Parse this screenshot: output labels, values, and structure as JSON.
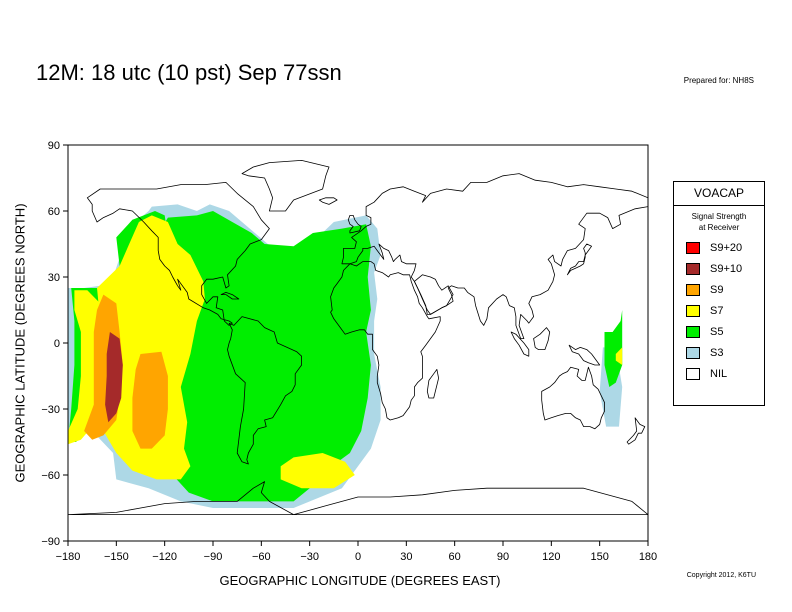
{
  "title": "12M:  18 utc (10 pst) Sep 77ssn",
  "prepared_for": "Prepared for: NH8S",
  "copyright": "Copyright 2012, K6TU",
  "axes": {
    "xlabel": "GEOGRAPHIC LONGITUDE (DEGREES EAST)",
    "ylabel": "GEOGRAPHIC LATITUDE (DEGREES NORTH)",
    "xlim": [
      -180,
      180
    ],
    "ylim": [
      -90,
      90
    ],
    "xticks": [
      "−180",
      "−150",
      "−120",
      "−90",
      "−60",
      "−30",
      "0",
      "30",
      "60",
      "90",
      "120",
      "150",
      "180"
    ],
    "yticks": [
      "90",
      "60",
      "30",
      "0",
      "−30",
      "−60",
      "−90"
    ]
  },
  "legend": {
    "title": "VOACAP",
    "subtitle_line1": "Signal Strength",
    "subtitle_line2": "at Receiver",
    "items": [
      {
        "label": "S9+20",
        "color": "#ff0000"
      },
      {
        "label": "S9+10",
        "color": "#a52a2a"
      },
      {
        "label": "S9",
        "color": "#ffa500"
      },
      {
        "label": "S7",
        "color": "#ffff00"
      },
      {
        "label": "S5",
        "color": "#00ee00"
      },
      {
        "label": "S3",
        "color": "#add8e6"
      },
      {
        "label": "NIL",
        "color": "#ffffff"
      }
    ]
  },
  "chart_data": {
    "type": "map",
    "xlim": [
      -180,
      180
    ],
    "ylim": [
      -90,
      90
    ],
    "regions": [
      {
        "level": "S3",
        "color": "#add8e6",
        "polygon": [
          [
            -128,
            62
          ],
          [
            -112,
            63
          ],
          [
            -100,
            60
          ],
          [
            -92,
            63
          ],
          [
            -80,
            60
          ],
          [
            -72,
            55
          ],
          [
            -64,
            50
          ],
          [
            -56,
            45
          ],
          [
            -40,
            40
          ],
          [
            -25,
            48
          ],
          [
            -15,
            55
          ],
          [
            5,
            58
          ],
          [
            12,
            52
          ],
          [
            14,
            40
          ],
          [
            10,
            32
          ],
          [
            12,
            20
          ],
          [
            10,
            10
          ],
          [
            10,
            -5
          ],
          [
            14,
            -20
          ],
          [
            14,
            -35
          ],
          [
            8,
            -48
          ],
          [
            -2,
            -58
          ],
          [
            -10,
            -66
          ],
          [
            -40,
            -75
          ],
          [
            -90,
            -75
          ],
          [
            -110,
            -72
          ],
          [
            -130,
            -66
          ],
          [
            -150,
            -62
          ],
          [
            -152,
            -50
          ],
          [
            -165,
            -40
          ],
          [
            -178,
            -22
          ],
          [
            -177,
            -10
          ],
          [
            -178,
            5
          ],
          [
            -180,
            25
          ],
          [
            -170,
            25
          ],
          [
            -160,
            26
          ],
          [
            -152,
            30
          ],
          [
            -145,
            45
          ],
          [
            -138,
            55
          ],
          [
            -130,
            60
          ]
        ]
      },
      {
        "level": "S3",
        "color": "#add8e6",
        "polygon": [
          [
            -180,
            25
          ],
          [
            -170,
            25
          ],
          [
            -165,
            18
          ],
          [
            -168,
            0
          ],
          [
            -172,
            -20
          ],
          [
            -172,
            -40
          ],
          [
            -180,
            -42
          ]
        ]
      },
      {
        "level": "S5",
        "color": "#00ee00",
        "polygon": [
          [
            -118,
            57
          ],
          [
            -100,
            58
          ],
          [
            -90,
            60
          ],
          [
            -78,
            55
          ],
          [
            -66,
            50
          ],
          [
            -58,
            45
          ],
          [
            -40,
            44
          ],
          [
            -28,
            50
          ],
          [
            -10,
            52
          ],
          [
            5,
            54
          ],
          [
            8,
            44
          ],
          [
            6,
            30
          ],
          [
            8,
            15
          ],
          [
            5,
            5
          ],
          [
            8,
            -10
          ],
          [
            6,
            -25
          ],
          [
            2,
            -40
          ],
          [
            -5,
            -50
          ],
          [
            -20,
            -58
          ],
          [
            -30,
            -66
          ],
          [
            -40,
            -72
          ],
          [
            -90,
            -72
          ],
          [
            -105,
            -68
          ],
          [
            -115,
            -60
          ],
          [
            -118,
            -48
          ],
          [
            -112,
            -40
          ],
          [
            -115,
            -20
          ],
          [
            -118,
            -5
          ],
          [
            -112,
            10
          ],
          [
            -110,
            22
          ],
          [
            -112,
            35
          ],
          [
            -118,
            45
          ],
          [
            -122,
            52
          ]
        ]
      },
      {
        "level": "S5",
        "color": "#00ee00",
        "polygon": [
          [
            -170,
            25
          ],
          [
            -162,
            25
          ],
          [
            -155,
            22
          ],
          [
            -160,
            10
          ],
          [
            -165,
            0
          ],
          [
            -164,
            -15
          ],
          [
            -168,
            -30
          ],
          [
            -170,
            -40
          ],
          [
            -175,
            -45
          ],
          [
            -180,
            -45
          ],
          [
            -178,
            -30
          ],
          [
            -176,
            -10
          ],
          [
            -176,
            10
          ],
          [
            -178,
            25
          ]
        ]
      },
      {
        "level": "S5",
        "color": "#00ee00",
        "polygon": [
          [
            -150,
            48
          ],
          [
            -140,
            56
          ],
          [
            -126,
            60
          ],
          [
            -120,
            58
          ],
          [
            -118,
            48
          ],
          [
            -112,
            38
          ],
          [
            -112,
            25
          ],
          [
            -118,
            15
          ],
          [
            -125,
            5
          ],
          [
            -132,
            -5
          ],
          [
            -138,
            -10
          ],
          [
            -145,
            -5
          ],
          [
            -150,
            5
          ],
          [
            -150,
            20
          ],
          [
            -148,
            35
          ]
        ]
      },
      {
        "level": "S7",
        "color": "#ffff00",
        "polygon": [
          [
            -128,
            58
          ],
          [
            -118,
            55
          ],
          [
            -112,
            45
          ],
          [
            -104,
            40
          ],
          [
            -96,
            28
          ],
          [
            -95,
            20
          ],
          [
            -100,
            10
          ],
          [
            -104,
            -5
          ],
          [
            -110,
            -20
          ],
          [
            -106,
            -36
          ],
          [
            -108,
            -48
          ],
          [
            -104,
            -56
          ],
          [
            -110,
            -62
          ],
          [
            -125,
            -62
          ],
          [
            -140,
            -58
          ],
          [
            -150,
            -50
          ],
          [
            -158,
            -40
          ],
          [
            -162,
            -25
          ],
          [
            -162,
            -5
          ],
          [
            -160,
            10
          ],
          [
            -162,
            25
          ],
          [
            -155,
            30
          ],
          [
            -148,
            35
          ],
          [
            -142,
            45
          ],
          [
            -136,
            55
          ]
        ]
      },
      {
        "level": "S7",
        "color": "#ffff00",
        "polygon": [
          [
            -176,
            24
          ],
          [
            -168,
            24
          ],
          [
            -160,
            18
          ],
          [
            -158,
            5
          ],
          [
            -158,
            -10
          ],
          [
            -160,
            -25
          ],
          [
            -165,
            -38
          ],
          [
            -172,
            -44
          ],
          [
            -180,
            -46
          ],
          [
            -180,
            -40
          ],
          [
            -174,
            -30
          ],
          [
            -172,
            -15
          ],
          [
            -172,
            5
          ],
          [
            -176,
            15
          ]
        ]
      },
      {
        "level": "S7",
        "color": "#ffff00",
        "polygon": [
          [
            -40,
            -52
          ],
          [
            -22,
            -50
          ],
          [
            -8,
            -54
          ],
          [
            -2,
            -60
          ],
          [
            -15,
            -66
          ],
          [
            -35,
            -66
          ],
          [
            -48,
            -62
          ],
          [
            -48,
            -56
          ]
        ]
      },
      {
        "level": "S9",
        "color": "#ffa500",
        "polygon": [
          [
            -158,
            22
          ],
          [
            -150,
            18
          ],
          [
            -148,
            5
          ],
          [
            -146,
            -10
          ],
          [
            -148,
            -25
          ],
          [
            -150,
            -35
          ],
          [
            -158,
            -42
          ],
          [
            -165,
            -44
          ],
          [
            -170,
            -40
          ],
          [
            -164,
            -28
          ],
          [
            -164,
            -10
          ],
          [
            -164,
            5
          ],
          [
            -162,
            15
          ]
        ]
      },
      {
        "level": "S9",
        "color": "#ffa500",
        "polygon": [
          [
            -135,
            -5
          ],
          [
            -122,
            -4
          ],
          [
            -118,
            -15
          ],
          [
            -118,
            -30
          ],
          [
            -120,
            -42
          ],
          [
            -128,
            -48
          ],
          [
            -135,
            -48
          ],
          [
            -140,
            -40
          ],
          [
            -140,
            -25
          ],
          [
            -138,
            -12
          ]
        ]
      },
      {
        "level": "S9+10",
        "color": "#a52a2a",
        "polygon": [
          [
            -154,
            5
          ],
          [
            -148,
            2
          ],
          [
            -146,
            -10
          ],
          [
            -147,
            -25
          ],
          [
            -150,
            -32
          ],
          [
            -155,
            -36
          ],
          [
            -157,
            -28
          ],
          [
            -156,
            -15
          ],
          [
            -156,
            -5
          ]
        ]
      },
      {
        "level": "S3",
        "color": "#add8e6",
        "polygon": [
          [
            152,
            -2
          ],
          [
            160,
            -2
          ],
          [
            164,
            -20
          ],
          [
            162,
            -38
          ],
          [
            154,
            -38
          ],
          [
            150,
            -22
          ]
        ]
      },
      {
        "level": "S5",
        "color": "#00ee00",
        "polygon": [
          [
            153,
            5
          ],
          [
            158,
            5
          ],
          [
            163,
            10
          ],
          [
            164,
            15
          ],
          [
            164,
            -10
          ],
          [
            160,
            -18
          ],
          [
            156,
            -20
          ],
          [
            153,
            -10
          ]
        ]
      },
      {
        "level": "S7",
        "color": "#ffff00",
        "polygon": [
          [
            160,
            -5
          ],
          [
            164,
            -2
          ],
          [
            164,
            -10
          ],
          [
            160,
            -8
          ]
        ]
      }
    ]
  }
}
